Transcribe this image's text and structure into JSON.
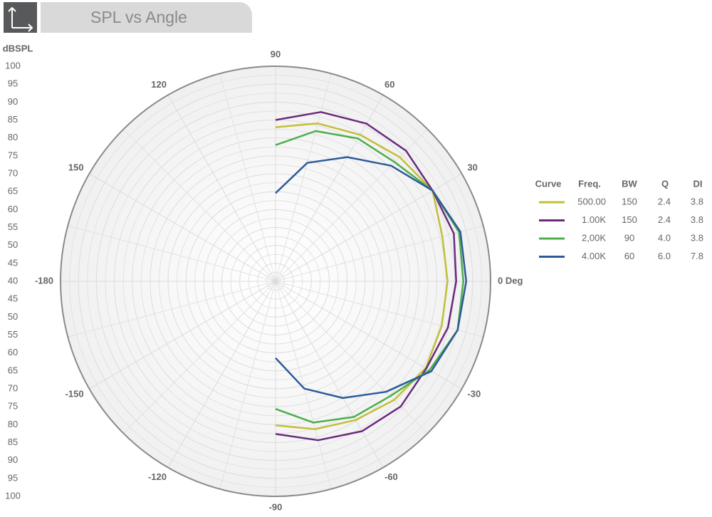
{
  "chart_data": {
    "type": "polar",
    "title": "SPL vs Angle",
    "radial_label": "dBSPL",
    "x": [
      90,
      75,
      60,
      45,
      30,
      15,
      0,
      -15,
      -30,
      -45,
      -60,
      -75,
      -90
    ],
    "rlim": [
      40,
      100
    ],
    "rticks": [
      40,
      45,
      50,
      55,
      60,
      65,
      70,
      75,
      80,
      85,
      90,
      95,
      100
    ],
    "thetaticks": [
      {
        "value": 0,
        "label": "0 Deg"
      },
      30,
      60,
      90,
      120,
      150,
      -180,
      -150,
      -120,
      -90,
      -60,
      -30
    ],
    "grid": true,
    "legend_headers": [
      "Curve",
      "Freq.",
      "BW",
      "Q",
      "DI"
    ],
    "series": [
      {
        "name": "500.00",
        "color": "#c2bf3a",
        "bw": 150,
        "q": 2.4,
        "di": 3.8,
        "values": [
          83,
          85.6,
          87.2,
          89,
          90.6,
          88.2,
          88,
          88,
          88.4,
          86.8,
          84.7,
          82.7,
          80.2
        ]
      },
      {
        "name": "1.00K",
        "color": "#6a2a7e",
        "bw": 150,
        "q": 2.4,
        "di": 3.8,
        "values": [
          85,
          88.9,
          90.8,
          91.5,
          90.6,
          91.5,
          90.4,
          89.8,
          88.6,
          89.4,
          88.3,
          85.9,
          82.6
        ]
      },
      {
        "name": "2,00K",
        "color": "#4caf4c",
        "bw": 90,
        "q": 4.0,
        "di": 3.8,
        "values": [
          78,
          83.4,
          86,
          87,
          90.6,
          93,
          92.4,
          92.6,
          89.6,
          85.3,
          83.7,
          80.8,
          75.6
        ]
      },
      {
        "name": "4.00K",
        "color": "#2d5b9a",
        "bw": 60,
        "q": 6.0,
        "di": 7.8,
        "values": [
          64.6,
          74.2,
          80,
          85.6,
          90.6,
          93.4,
          93.2,
          92.6,
          90.2,
          83.6,
          77.6,
          71,
          61.4
        ]
      }
    ]
  }
}
